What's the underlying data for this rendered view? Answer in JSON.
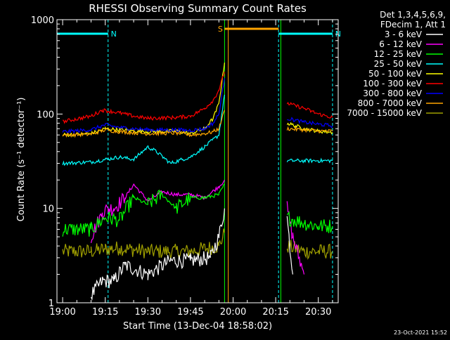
{
  "chart_data": {
    "type": "line",
    "title": "RHESSI Observing Summary Count Rates",
    "xlabel": "Start Time (13-Dec-04 18:58:02)",
    "ylabel": "Count Rate (s⁻¹ detector⁻¹)",
    "yscale": "log",
    "ylim": [
      1,
      1000
    ],
    "xlim_minutes": [
      -2,
      97
    ],
    "x_ticks": [
      {
        "min": 0,
        "label": "19:00"
      },
      {
        "min": 15,
        "label": "19:15"
      },
      {
        "min": 30,
        "label": "19:30"
      },
      {
        "min": 45,
        "label": "19:45"
      },
      {
        "min": 60,
        "label": "20:00"
      },
      {
        "min": 75,
        "label": "20:15"
      },
      {
        "min": 90,
        "label": "20:30"
      }
    ],
    "y_ticks": [
      {
        "value": 1,
        "label": "1"
      },
      {
        "value": 10,
        "label": "10"
      },
      {
        "value": 100,
        "label": "100"
      },
      {
        "value": 1000,
        "label": "1000"
      }
    ],
    "legend": {
      "placement": "right",
      "header": [
        "Det 1,3,4,5,6,9,",
        "FDecim 1, Att 1"
      ],
      "entries": [
        {
          "label": "3 - 6 keV",
          "color": "#ffffff"
        },
        {
          "label": "6 - 12 keV",
          "color": "#ff00ff"
        },
        {
          "label": "12 - 25 keV",
          "color": "#00ff00"
        },
        {
          "label": "25 - 50 keV",
          "color": "#00ffff"
        },
        {
          "label": "50 - 100 keV",
          "color": "#ffff00"
        },
        {
          "label": "100 - 300 keV",
          "color": "#ff0000"
        },
        {
          "label": "300 - 800 keV",
          "color": "#0000ff"
        },
        {
          "label": "800 - 7000 keV",
          "color": "#ffa500"
        },
        {
          "label": "7000 - 15000 keV",
          "color": "#a0a000"
        }
      ]
    },
    "flag_bars": [
      {
        "label": "N",
        "color": "#00ffff",
        "start_min": -2,
        "end_min": 16
      },
      {
        "label": "N",
        "color": "#00ffff",
        "start_min": 76,
        "end_min": 95
      },
      {
        "label": "S",
        "color": "#ffa500",
        "start_min": 57,
        "end_min": 76
      }
    ],
    "vertical_lines": [
      {
        "min": -2,
        "color": "#00ffff",
        "style": "solid"
      },
      {
        "min": 16,
        "color": "#00ffff",
        "style": "dashed"
      },
      {
        "min": 57,
        "color": "#00ff00",
        "style": "solid"
      },
      {
        "min": 58.3,
        "color": "#ffa500",
        "style": "solid"
      },
      {
        "min": 76,
        "color": "#00ffff",
        "style": "dashed"
      },
      {
        "min": 76.8,
        "color": "#00ff00",
        "style": "solid"
      },
      {
        "min": 95,
        "color": "#00ffff",
        "style": "dashed"
      }
    ],
    "data_gap_minutes": [
      57,
      79
    ],
    "series": [
      {
        "color": "#a0a000",
        "x": [
          0,
          10,
          15,
          20,
          30,
          45,
          55,
          57,
          79,
          85,
          90,
          95
        ],
        "y": [
          3.5,
          3.5,
          3.7,
          3.8,
          3.5,
          3.5,
          4,
          5.5,
          4,
          3.5,
          3.5,
          3.5
        ]
      },
      {
        "color": "#ffffff",
        "x": [
          10,
          14,
          18,
          22,
          30,
          38,
          45,
          52,
          55,
          57,
          79,
          81
        ],
        "y": [
          1.2,
          1.7,
          1.7,
          2.5,
          2,
          2.8,
          2.8,
          3,
          5,
          10,
          8,
          2
        ]
      },
      {
        "color": "#ff00ff",
        "x": [
          10,
          14,
          16,
          18,
          22,
          25,
          30,
          35,
          40,
          45,
          50,
          55,
          57,
          79,
          81,
          85
        ],
        "y": [
          5,
          9,
          10,
          10,
          13,
          18,
          12,
          15,
          14,
          14,
          13,
          17,
          20,
          10,
          5,
          2
        ]
      },
      {
        "color": "#00ff00",
        "x": [
          0,
          10,
          15,
          20,
          25,
          30,
          35,
          40,
          45,
          50,
          55,
          57,
          79,
          85,
          90,
          95
        ],
        "y": [
          6,
          6,
          8,
          7.5,
          13,
          11,
          14,
          10,
          13,
          13,
          14,
          18,
          8,
          7,
          6.5,
          6.5
        ]
      },
      {
        "color": "#00ffff",
        "x": [
          0,
          10,
          15,
          20,
          25,
          30,
          33,
          38,
          42,
          45,
          50,
          55,
          57,
          79,
          85,
          90,
          95
        ],
        "y": [
          30,
          31,
          33,
          35,
          33,
          45,
          40,
          30,
          33,
          35,
          45,
          60,
          160,
          32,
          32,
          32,
          32
        ]
      },
      {
        "color": "#ffff00",
        "x": [
          0,
          10,
          15,
          20,
          30,
          40,
          45,
          50,
          53,
          55,
          57,
          79,
          85,
          90,
          95
        ],
        "y": [
          60,
          62,
          70,
          68,
          65,
          66,
          62,
          70,
          90,
          130,
          350,
          80,
          70,
          66,
          64
        ]
      },
      {
        "color": "#ffa500",
        "x": [
          0,
          10,
          15,
          20,
          30,
          40,
          45,
          50,
          53,
          55,
          57,
          79,
          85,
          90,
          95
        ],
        "y": [
          60,
          61,
          68,
          65,
          62,
          63,
          60,
          62,
          65,
          70,
          110,
          70,
          68,
          66,
          66
        ]
      },
      {
        "color": "#0000ff",
        "x": [
          0,
          10,
          15,
          20,
          30,
          40,
          45,
          50,
          53,
          55,
          57,
          79,
          85,
          90,
          95
        ],
        "y": [
          65,
          68,
          77,
          72,
          68,
          68,
          67,
          70,
          80,
          100,
          240,
          90,
          82,
          78,
          75
        ]
      },
      {
        "color": "#ff0000",
        "x": [
          0,
          10,
          14,
          20,
          25,
          30,
          40,
          45,
          50,
          53,
          55,
          57,
          79,
          85,
          90,
          95
        ],
        "y": [
          83,
          95,
          110,
          103,
          95,
          90,
          92,
          95,
          115,
          140,
          180,
          280,
          130,
          115,
          100,
          92
        ]
      }
    ]
  },
  "footer": {
    "timestamp": "23-Oct-2021 15:52"
  }
}
